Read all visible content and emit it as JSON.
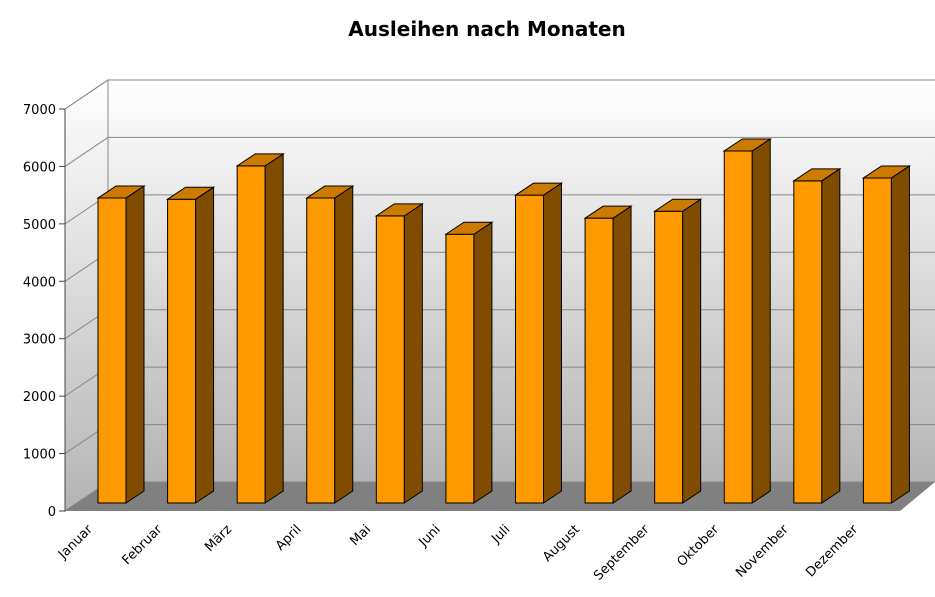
{
  "chart_data": {
    "type": "bar3d",
    "title": "Ausleihen nach Monaten",
    "categories": [
      "Januar",
      "Februar",
      "März",
      "April",
      "Mai",
      "Juni",
      "Juli",
      "August",
      "September",
      "Oktober",
      "November",
      "Dezember"
    ],
    "values": [
      5310,
      5290,
      5870,
      5310,
      5000,
      4680,
      5360,
      4960,
      5080,
      6130,
      5610,
      5660
    ],
    "color": "#ff9900",
    "ylim": [
      0,
      7000
    ],
    "yticks": [
      0,
      1000,
      2000,
      3000,
      4000,
      5000,
      6000,
      7000
    ],
    "grid": true
  }
}
